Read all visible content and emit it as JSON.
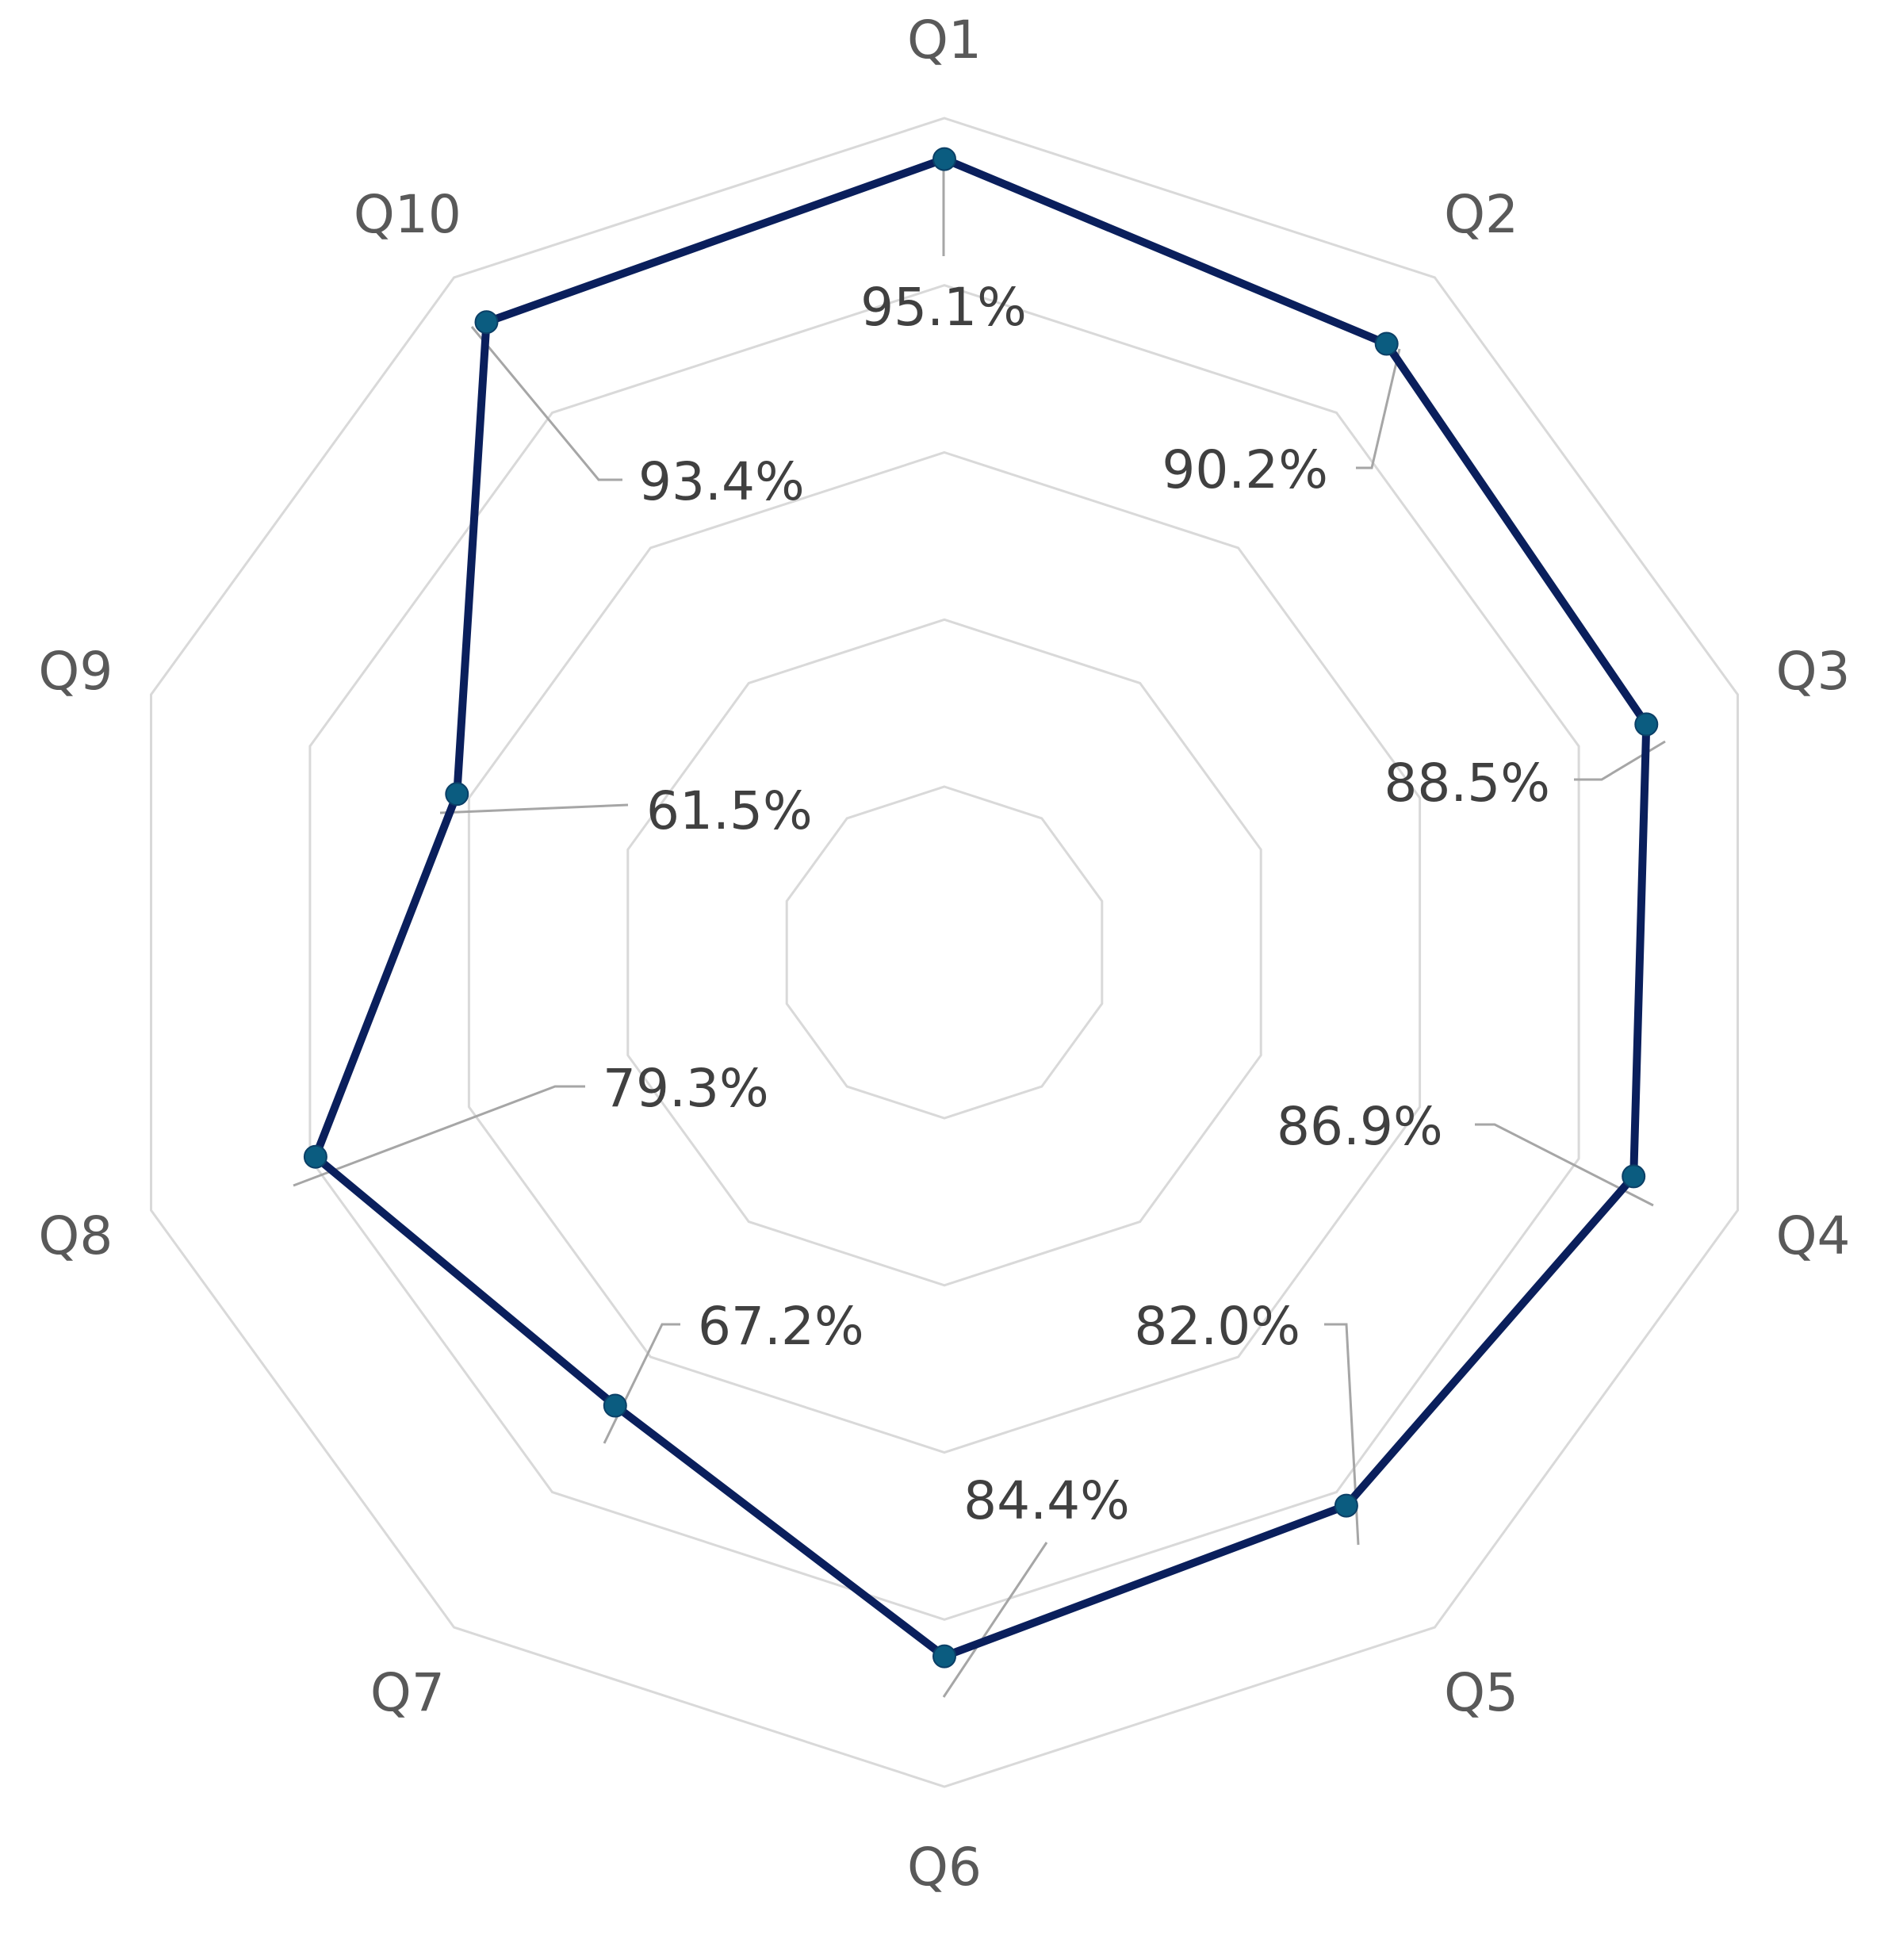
{
  "chart_data": {
    "type": "radar",
    "categories": [
      "Q1",
      "Q2",
      "Q3",
      "Q4",
      "Q5",
      "Q6",
      "Q7",
      "Q8",
      "Q9",
      "Q10"
    ],
    "series": [
      {
        "values": [
          0.951,
          0.902,
          0.885,
          0.869,
          0.82,
          0.844,
          0.672,
          0.793,
          0.615,
          0.934
        ],
        "labels": [
          "95.1%",
          "90.2%",
          "88.5%",
          "86.9%",
          "82.0%",
          "84.4%",
          "67.2%",
          "79.3%",
          "61.5%",
          "93.4%"
        ],
        "color": "#0a1f5c",
        "marker_color": "#0b5c80"
      }
    ],
    "rlim": [
      0.2,
      1.0
    ],
    "rings": [
      0.2,
      0.4,
      0.6,
      0.8,
      1.0
    ],
    "grid": true,
    "grid_color": "#d9d9d9",
    "legend": "none"
  }
}
